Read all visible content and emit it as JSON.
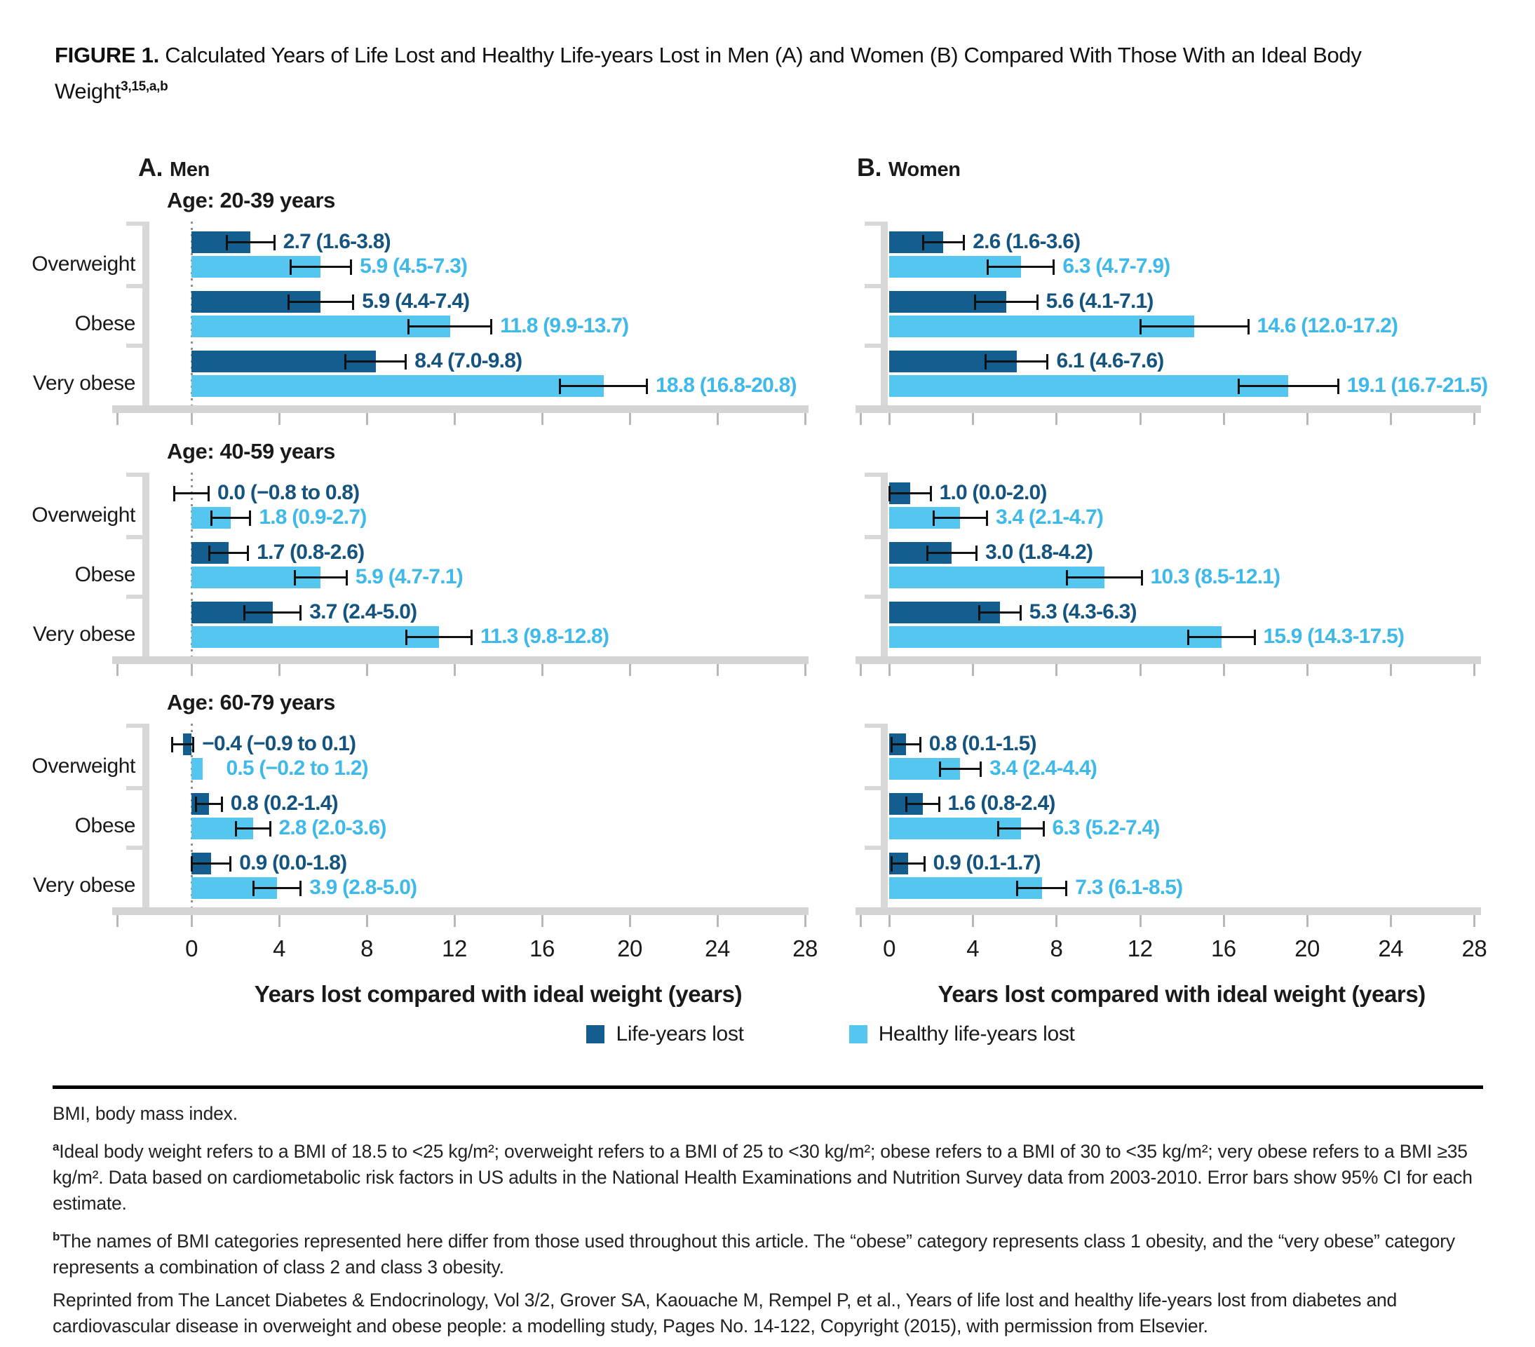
{
  "figure": {
    "label": "FIGURE 1.",
    "title": " Calculated Years of Life Lost and Healthy Life-years Lost in Men (A) and Women (B) Compared With Those With an Ideal Body Weight",
    "title_superscript": "3,15,a,b"
  },
  "panels": [
    {
      "label": "A.",
      "name": "Men"
    },
    {
      "label": "B.",
      "name": "Women"
    }
  ],
  "axis": {
    "xlabel": "Years lost compared with ideal weight (years)",
    "ticks": [
      0,
      4,
      8,
      12,
      16,
      20,
      24,
      28
    ],
    "xmax": 28
  },
  "legend": [
    {
      "label": "Life-years lost",
      "color": "#145e8f",
      "text_color": "#14547f"
    },
    {
      "label": "Healthy life-years lost",
      "color": "#55c6f0",
      "text_color": "#3fb9e8"
    }
  ],
  "chart_data": [
    {
      "type": "bar",
      "panel": "Men",
      "age_group": "Age: 20-39 years",
      "categories": [
        "Overweight",
        "Obese",
        "Very obese"
      ],
      "xlim": [
        -2.2,
        28
      ],
      "series": [
        {
          "name": "Life-years lost",
          "values": [
            2.7,
            5.9,
            8.4
          ],
          "ci": [
            [
              1.6,
              3.8
            ],
            [
              4.4,
              7.4
            ],
            [
              7.0,
              9.8
            ]
          ],
          "labels": [
            "2.7 (1.6-3.8)",
            "5.9 (4.4-7.4)",
            "8.4 (7.0-9.8)"
          ]
        },
        {
          "name": "Healthy life-years lost",
          "values": [
            5.9,
            11.8,
            18.8
          ],
          "ci": [
            [
              4.5,
              7.3
            ],
            [
              9.9,
              13.7
            ],
            [
              16.8,
              20.8
            ]
          ],
          "labels": [
            "5.9 (4.5-7.3)",
            "11.8 (9.9-13.7)",
            "18.8 (16.8-20.8)"
          ]
        }
      ]
    },
    {
      "type": "bar",
      "panel": "Men",
      "age_group": "Age: 40-59 years",
      "categories": [
        "Overweight",
        "Obese",
        "Very obese"
      ],
      "xlim": [
        -2.2,
        28
      ],
      "series": [
        {
          "name": "Life-years lost",
          "values": [
            0.0,
            1.7,
            3.7
          ],
          "ci": [
            [
              -0.8,
              0.8
            ],
            [
              0.8,
              2.6
            ],
            [
              2.4,
              5.0
            ]
          ],
          "labels": [
            "0.0 (−0.8 to 0.8)",
            "1.7 (0.8-2.6)",
            "3.7 (2.4-5.0)"
          ]
        },
        {
          "name": "Healthy life-years lost",
          "values": [
            1.8,
            5.9,
            11.3
          ],
          "ci": [
            [
              0.9,
              2.7
            ],
            [
              4.7,
              7.1
            ],
            [
              9.8,
              12.8
            ]
          ],
          "labels": [
            "1.8 (0.9-2.7)",
            "5.9 (4.7-7.1)",
            "11.3 (9.8-12.8)"
          ]
        }
      ]
    },
    {
      "type": "bar",
      "panel": "Men",
      "age_group": "Age: 60-79 years",
      "categories": [
        "Overweight",
        "Obese",
        "Very obese"
      ],
      "xlim": [
        -2.2,
        28
      ],
      "series": [
        {
          "name": "Life-years lost",
          "values": [
            -0.4,
            0.8,
            0.9
          ],
          "ci": [
            [
              -0.9,
              0.1
            ],
            [
              0.2,
              1.4
            ],
            [
              0.0,
              1.8
            ]
          ],
          "labels": [
            "−0.4 (−0.9 to 0.1)",
            "0.8 (0.2-1.4)",
            "0.9 (0.0-1.8)"
          ]
        },
        {
          "name": "Healthy life-years lost",
          "values": [
            0.5,
            2.8,
            3.9
          ],
          "ci": [
            [
              -0.2,
              1.2
            ],
            [
              2.0,
              3.6
            ],
            [
              2.8,
              5.0
            ]
          ],
          "show_ci": [
            false,
            true,
            true
          ],
          "labels": [
            "0.5 (−0.2 to 1.2)",
            "2.8 (2.0-3.6)",
            "3.9 (2.8-5.0)"
          ]
        }
      ]
    },
    {
      "type": "bar",
      "panel": "Women",
      "age_group": "Age: 20-39 years",
      "categories": [
        "Overweight",
        "Obese",
        "Very obese"
      ],
      "xlim": [
        0,
        28
      ],
      "series": [
        {
          "name": "Life-years lost",
          "values": [
            2.6,
            5.6,
            6.1
          ],
          "ci": [
            [
              1.6,
              3.6
            ],
            [
              4.1,
              7.1
            ],
            [
              4.6,
              7.6
            ]
          ],
          "labels": [
            "2.6 (1.6-3.6)",
            "5.6 (4.1-7.1)",
            "6.1 (4.6-7.6)"
          ]
        },
        {
          "name": "Healthy life-years lost",
          "values": [
            6.3,
            14.6,
            19.1
          ],
          "ci": [
            [
              4.7,
              7.9
            ],
            [
              12.0,
              17.2
            ],
            [
              16.7,
              21.5
            ]
          ],
          "labels": [
            "6.3 (4.7-7.9)",
            "14.6 (12.0-17.2)",
            "19.1 (16.7-21.5)"
          ]
        }
      ]
    },
    {
      "type": "bar",
      "panel": "Women",
      "age_group": "Age: 40-59 years",
      "categories": [
        "Overweight",
        "Obese",
        "Very obese"
      ],
      "xlim": [
        0,
        28
      ],
      "series": [
        {
          "name": "Life-years lost",
          "values": [
            1.0,
            3.0,
            5.3
          ],
          "ci": [
            [
              0.0,
              2.0
            ],
            [
              1.8,
              4.2
            ],
            [
              4.3,
              6.3
            ]
          ],
          "labels": [
            "1.0 (0.0-2.0)",
            "3.0 (1.8-4.2)",
            "5.3 (4.3-6.3)"
          ]
        },
        {
          "name": "Healthy life-years lost",
          "values": [
            3.4,
            10.3,
            15.9
          ],
          "ci": [
            [
              2.1,
              4.7
            ],
            [
              8.5,
              12.1
            ],
            [
              14.3,
              17.5
            ]
          ],
          "labels": [
            "3.4 (2.1-4.7)",
            "10.3 (8.5-12.1)",
            "15.9 (14.3-17.5)"
          ]
        }
      ]
    },
    {
      "type": "bar",
      "panel": "Women",
      "age_group": "Age: 60-79 years",
      "categories": [
        "Overweight",
        "Obese",
        "Very obese"
      ],
      "xlim": [
        0,
        28
      ],
      "series": [
        {
          "name": "Life-years lost",
          "values": [
            0.8,
            1.6,
            0.9
          ],
          "ci": [
            [
              0.1,
              1.5
            ],
            [
              0.8,
              2.4
            ],
            [
              0.1,
              1.7
            ]
          ],
          "labels": [
            "0.8 (0.1-1.5)",
            "1.6 (0.8-2.4)",
            "0.9 (0.1-1.7)"
          ]
        },
        {
          "name": "Healthy life-years lost",
          "values": [
            3.4,
            6.3,
            7.3
          ],
          "ci": [
            [
              2.4,
              4.4
            ],
            [
              5.2,
              7.4
            ],
            [
              6.1,
              8.5
            ]
          ],
          "labels": [
            "3.4 (2.4-4.4)",
            "6.3 (5.2-7.4)",
            "7.3 (6.1-8.5)"
          ]
        }
      ]
    }
  ],
  "footnotes": {
    "abbrev": "BMI, body mass index.",
    "a_sup": "a",
    "a_text": "Ideal body weight refers to a BMI of 18.5 to <25 kg/m²; overweight refers to a BMI of 25 to <30 kg/m²; obese refers to a BMI of 30 to <35 kg/m²; very obese refers to a BMI ≥35 kg/m². Data based on cardiometabolic risk factors in US adults in the National Health Examinations and Nutrition Survey data from 2003-2010. Error bars show 95% CI for each estimate.",
    "b_sup": "b",
    "b_text": "The names of BMI categories represented here differ from those used throughout this article. The “obese” category represents class 1 obesity, and the “very obese” category represents a combination of class 2 and class 3 obesity.",
    "reprint": "Reprinted from The Lancet Diabetes & Endocrinology, Vol 3/2, Grover SA, Kaouache M, Rempel P, et al., Years of life lost and healthy life-years lost from diabetes and cardiovascular disease in overweight and obese people: a modelling study, Pages No. 14-122, Copyright (2015), with permission from Elsevier."
  }
}
